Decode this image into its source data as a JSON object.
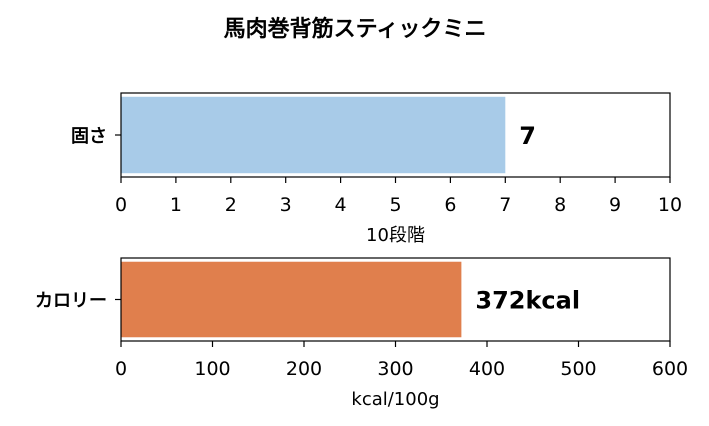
{
  "title": "馬肉巻背筋スティックミニ",
  "chart_data": [
    {
      "type": "bar",
      "orientation": "horizontal",
      "categories": [
        "固さ"
      ],
      "values": [
        7
      ],
      "value_label": "7",
      "xlabel": "10段階",
      "xlim": [
        0,
        10
      ],
      "ticks": [
        "0",
        "1",
        "2",
        "3",
        "4",
        "5",
        "6",
        "7",
        "8",
        "9",
        "10"
      ],
      "color": "#a8cbe8"
    },
    {
      "type": "bar",
      "orientation": "horizontal",
      "categories": [
        "カロリー"
      ],
      "values": [
        372
      ],
      "value_label": "372kcal",
      "xlabel": "kcal/100g",
      "xlim": [
        0,
        600
      ],
      "ticks": [
        "0",
        "100",
        "200",
        "300",
        "400",
        "500",
        "600"
      ],
      "color": "#e07f4d"
    }
  ]
}
